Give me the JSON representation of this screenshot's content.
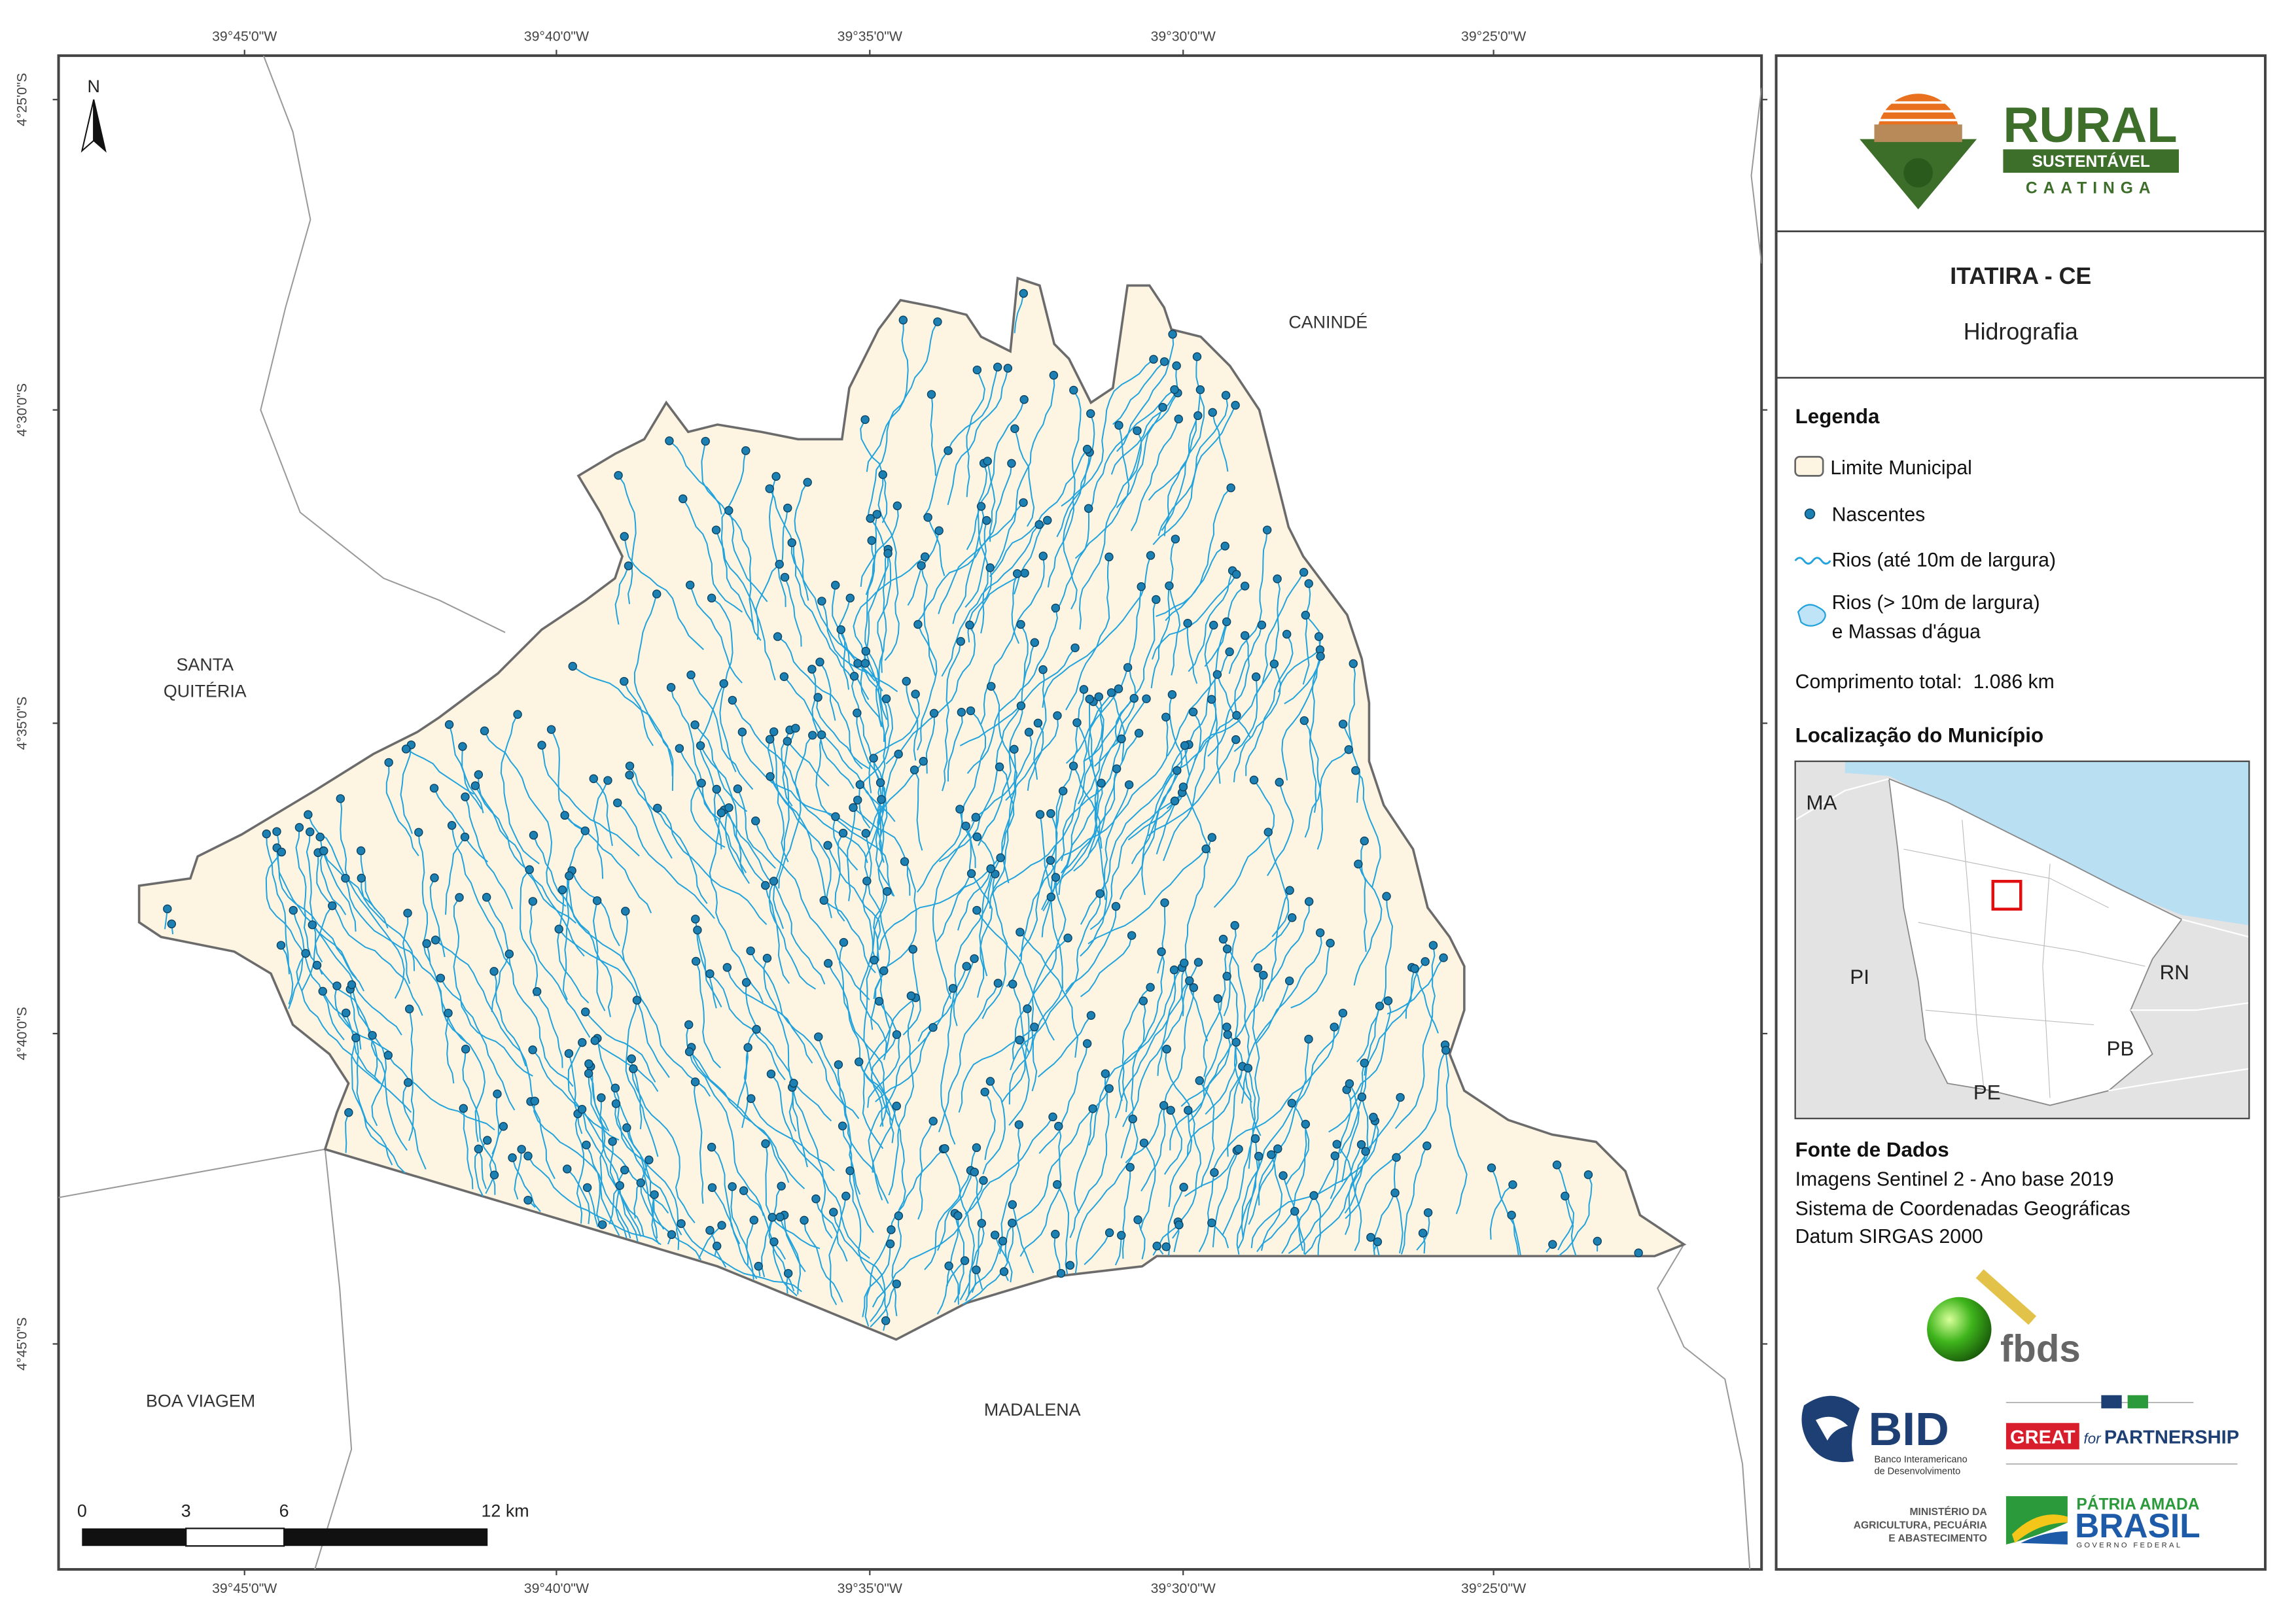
{
  "map": {
    "coordinate_labels": {
      "top": [
        "39°45'0\"W",
        "39°40'0\"W",
        "39°35'0\"W",
        "39°30'0\"W",
        "39°25'0\"W"
      ],
      "bottom": [
        "39°45'0\"W",
        "39°40'0\"W",
        "39°35'0\"W",
        "39°30'0\"W",
        "39°25'0\"W"
      ],
      "left": [
        "4°25'0\"S",
        "4°30'0\"S",
        "4°35'0\"S",
        "4°40'0\"S",
        "4°45'0\"S"
      ]
    },
    "place_labels": {
      "caninde": [
        "CANINDÉ"
      ],
      "santa_quiteria": [
        "SANTA",
        "QUITÉRIA"
      ],
      "boa_viagem": [
        "BOA VIAGEM"
      ],
      "madalena": [
        "MADALENA"
      ]
    },
    "north_arrow": "N",
    "scale_bar": [
      "0",
      "3",
      "6",
      "12 km"
    ]
  },
  "panel": {
    "logo": {
      "rural": "RURAL",
      "sustentavel": "SUSTENTÁVEL",
      "caatinga": "CAATINGA"
    },
    "title": "ITATIRA - CE",
    "subtitle": "Hidrografia",
    "legend": {
      "title": "Legenda",
      "items": [
        [
          "Limite Municipal"
        ],
        [
          "Nascentes"
        ],
        [
          "Rios (até 10m de largura)"
        ],
        [
          "Rios (> 10m de largura)",
          "e Massas d'água"
        ]
      ],
      "total_length": "Comprimento total:  1.086 km"
    },
    "location": {
      "title": "Localização do Município",
      "labels": [
        "MA",
        "PI",
        "RN",
        "PB",
        "PE"
      ]
    },
    "sources": {
      "title": "Fonte de Dados",
      "lines": [
        "Imagens Sentinel 2 - Ano base 2019",
        "Sistema de Coordenadas Geográficas",
        "Datum SIRGAS 2000"
      ]
    },
    "logos": {
      "fbds": "fbds",
      "bid": "BID",
      "bid_sub": [
        "Banco Interamericano",
        "de Desenvolvimento"
      ],
      "great": "GREAT",
      "for": "for",
      "partnership": "PARTNERSHIP",
      "ministry": [
        "MINISTÉRIO DA",
        "AGRICULTURA, PECUÁRIA",
        "E ABASTECIMENTO"
      ],
      "patria": "PÁTRIA AMADA",
      "brasil": "BRASIL",
      "governo": "GOVERNO FEDERAL"
    }
  }
}
